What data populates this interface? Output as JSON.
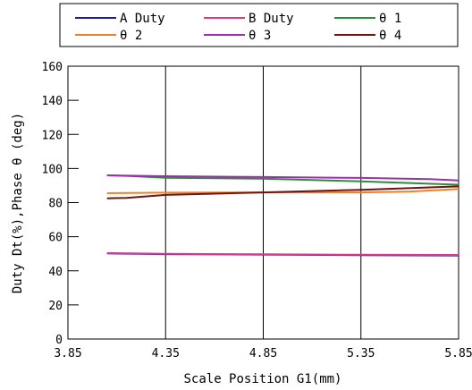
{
  "chart_data": {
    "type": "line",
    "xlabel": "Scale Position G1(mm)",
    "ylabel": "Duty Dt(%),Phase θ (deg)",
    "xlim": [
      3.85,
      5.85
    ],
    "ylim": [
      0,
      160
    ],
    "xticks": [
      3.85,
      4.35,
      4.85,
      5.35,
      5.85
    ],
    "xtick_labels": [
      "3.85",
      "4.35",
      "4.85",
      "5.35",
      "5.85"
    ],
    "yticks": [
      0,
      20,
      40,
      60,
      80,
      100,
      120,
      140,
      160
    ],
    "ytick_labels": [
      "0",
      "20",
      "40",
      "60",
      "80",
      "100",
      "120",
      "140",
      "160"
    ],
    "grid": "vertical-major",
    "legend_position": "top",
    "series": [
      {
        "name": "A Duty",
        "color": "#1c1c8c",
        "x": [
          4.05,
          4.35,
          4.85,
          5.35,
          5.85
        ],
        "y": [
          50.2,
          49.8,
          49.5,
          49.2,
          49.0
        ]
      },
      {
        "name": "B Duty",
        "color": "#d63c8e",
        "x": [
          4.05,
          4.35,
          4.85,
          5.35,
          5.85
        ],
        "y": [
          50.4,
          50.0,
          49.7,
          49.4,
          49.3
        ]
      },
      {
        "name": "θ 1",
        "color": "#2e8b3c",
        "x": [
          4.05,
          4.15,
          4.35,
          4.85,
          5.35,
          5.85
        ],
        "y": [
          96.0,
          95.7,
          94.6,
          94.0,
          92.5,
          90.5
        ]
      },
      {
        "name": "θ 2",
        "color": "#f08028",
        "x": [
          4.05,
          4.35,
          4.85,
          5.35,
          5.6,
          5.85
        ],
        "y": [
          85.5,
          85.8,
          86.0,
          86.0,
          86.5,
          88.0
        ]
      },
      {
        "name": "θ 3",
        "color": "#9b2fae",
        "x": [
          4.05,
          4.35,
          4.85,
          5.35,
          5.7,
          5.85
        ],
        "y": [
          96.0,
          95.5,
          95.0,
          94.5,
          93.8,
          93.0
        ]
      },
      {
        "name": "θ 4",
        "color": "#6e1414",
        "x": [
          4.05,
          4.15,
          4.35,
          4.85,
          5.35,
          5.85
        ],
        "y": [
          82.5,
          82.8,
          84.5,
          86.0,
          87.5,
          89.5
        ]
      }
    ]
  }
}
